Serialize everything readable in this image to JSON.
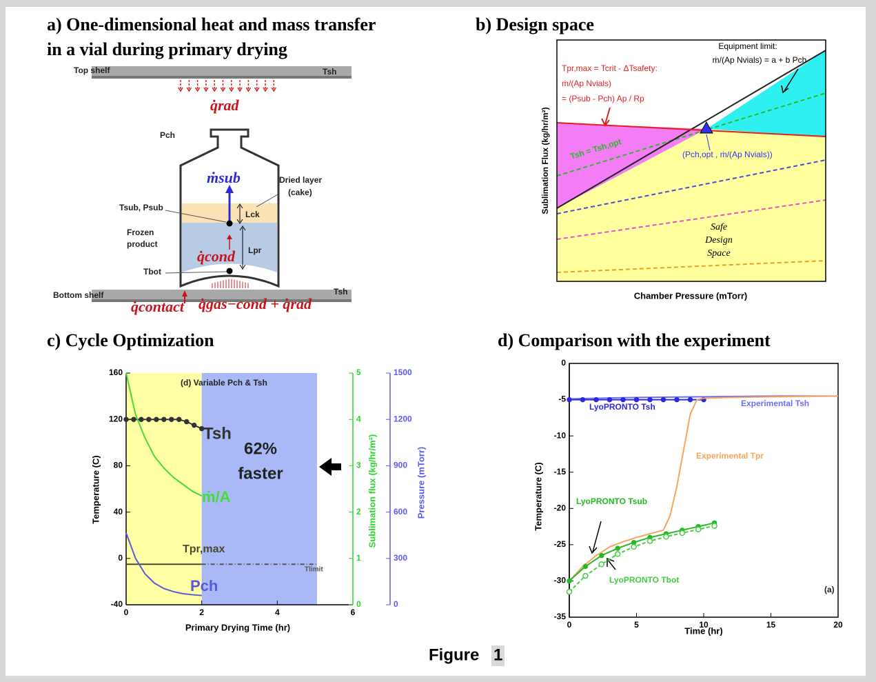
{
  "figure": {
    "label": "Figure",
    "number": "1"
  },
  "panel_a": {
    "title_lines": [
      "a) One-dimensional heat and mass transfer",
      "in a vial during primary drying"
    ],
    "top_shelf": "Top shelf",
    "top_tsh": "Tsh",
    "q_rad": "q̇rad",
    "p_ch": "Pch",
    "m_sub": "ṁsub",
    "dried_layer": [
      "Dried layer",
      "(cake)"
    ],
    "t_sub": "Tsub, Psub",
    "l_ck": "Lck",
    "frozen": [
      "Frozen",
      "product"
    ],
    "q_cond": "q̇cond",
    "l_pr": "Lpr",
    "t_bot": "Tbot",
    "bottom_shelf": "Bottom shelf",
    "bottom_tsh": "Tsh",
    "q_contact": "q̇contact",
    "q_gas": "q̇gas−cond + q̇rad"
  },
  "panel_b": {
    "title": "b) Design space",
    "equipment": [
      "Equipment limit:",
      "ṁ/(Ap Nvials) = a + b Pch"
    ],
    "product": [
      "Tpr,max = Tcrit - ΔTsafety:",
      "ṁ/(Ap Nvials)",
      "= (Psub - Pch) Ap / Rp"
    ],
    "tsh": "Tsh = Tsh,opt",
    "optimum": "(Pch,opt , ṁ/(Ap Nvials))",
    "safe": [
      "Safe",
      "Design",
      "Space"
    ],
    "ylabel": "Sublimation Flux (kg/hr/m²)",
    "xlabel": "Chamber Pressure (mTorr)"
  },
  "chart_data": [
    {
      "type": "line",
      "title": "c) Cycle Optimization",
      "xlabel": "Primary Drying Time (hr)",
      "ylabel": "Temperature (C)",
      "y2label": "Sublimation flux (kg/hr/m²)",
      "y3label": "Pressure (mTorr)",
      "xlim": [
        0,
        6
      ],
      "xticks": [
        0,
        2,
        4,
        6
      ],
      "ylim": [
        -40,
        160
      ],
      "yticks": [
        -40,
        0,
        40,
        80,
        120,
        160
      ],
      "y2lim": [
        0,
        5
      ],
      "y2ticks": [
        0,
        1,
        2,
        3,
        4,
        5
      ],
      "y2color": "#2bd62b",
      "y3lim": [
        0,
        1500
      ],
      "y3ticks": [
        0,
        300,
        600,
        900,
        1200,
        1500
      ],
      "y3color": "#5a5af0",
      "regions": [
        {
          "x": [
            0,
            2
          ],
          "color": "#ffffa6"
        },
        {
          "x": [
            2,
            5.05
          ],
          "color": "#a9b9f7"
        }
      ],
      "annotations": [
        "(d) Variable Pch & Tsh",
        "62%",
        "faster"
      ],
      "series": [
        {
          "name": "Tsh",
          "color": "#333333",
          "axis": "y",
          "marker": "dot",
          "x": [
            0,
            0.2,
            0.4,
            0.6,
            0.8,
            1,
            1.2,
            1.4,
            1.6,
            1.8,
            2
          ],
          "values": [
            120,
            120,
            120,
            120,
            120,
            120,
            120,
            120,
            118,
            115,
            112
          ]
        },
        {
          "name": "ṁ/A",
          "color": "#44dd33",
          "axis": "y2",
          "x": [
            0,
            0.25,
            0.5,
            0.75,
            1,
            1.25,
            1.5,
            1.75,
            2
          ],
          "values": [
            5,
            4.1,
            3.6,
            3.2,
            2.95,
            2.75,
            2.6,
            2.45,
            2.35
          ]
        },
        {
          "name": "Tpr,max",
          "color": "#4a4a2a",
          "axis": "y",
          "x": [
            0,
            2
          ],
          "values": [
            -5,
            -5
          ]
        },
        {
          "name": "Tlimit",
          "color": "#555555",
          "axis": "y",
          "dash": "6 3 1 3",
          "x": [
            2,
            5.05
          ],
          "values": [
            -5,
            -5
          ]
        },
        {
          "name": "Pch",
          "color": "#5a5ad8",
          "axis": "y3",
          "x": [
            0,
            0.25,
            0.5,
            0.75,
            1,
            1.25,
            1.5,
            1.75,
            2
          ],
          "values": [
            465,
            300,
            200,
            140,
            105,
            85,
            72,
            65,
            60
          ]
        }
      ]
    },
    {
      "type": "line",
      "title": "d) Comparison with the experiment",
      "xlabel": "Time (hr)",
      "ylabel": "Temperature (C)",
      "xlim": [
        0,
        20
      ],
      "xticks": [
        0,
        5,
        10,
        15,
        20
      ],
      "ylim": [
        -35,
        0
      ],
      "yticks": [
        -35,
        -30,
        -25,
        -20,
        -15,
        -10,
        -5,
        0
      ],
      "annotations": [
        "(a)"
      ],
      "series": [
        {
          "name": "Experimental Tsh",
          "color": "#6d6df7",
          "axis": "y",
          "x": [
            0,
            2,
            5,
            10,
            15,
            20
          ],
          "values": [
            -4.9,
            -4.8,
            -4.7,
            -4.6,
            -4.5,
            -4.5
          ]
        },
        {
          "name": "LyoPRONTO Tsh",
          "color": "#2b2bdd",
          "axis": "y",
          "marker": "dot",
          "x": [
            0,
            1,
            2,
            3,
            4,
            5,
            6,
            7,
            8,
            9,
            10
          ],
          "values": [
            -5,
            -5,
            -5,
            -5,
            -5,
            -5,
            -5,
            -5,
            -5,
            -5,
            -5
          ]
        },
        {
          "name": "Experimental Tpr",
          "color": "#f7a45c",
          "axis": "y",
          "x": [
            0,
            0.5,
            1,
            2,
            3,
            4,
            5,
            6,
            7,
            7.5,
            8,
            8.5,
            9,
            9.5,
            10,
            12,
            15,
            20
          ],
          "values": [
            -30,
            -29,
            -28,
            -26.5,
            -25.3,
            -24.6,
            -24,
            -23.5,
            -23,
            -21,
            -17,
            -12,
            -7,
            -5,
            -4.8,
            -4.7,
            -4.6,
            -4.5
          ]
        },
        {
          "name": "LyoPRONTO Tsub",
          "color": "#22bb22",
          "axis": "y",
          "marker": "dot",
          "x": [
            0,
            1.2,
            2.4,
            3.6,
            4.8,
            6,
            7.2,
            8.4,
            9.6,
            10.8
          ],
          "values": [
            -30,
            -28,
            -26.5,
            -25.5,
            -24.7,
            -24,
            -23.5,
            -23,
            -22.5,
            -22
          ]
        },
        {
          "name": "LyoPRONTO Tbot",
          "color": "#44cc44",
          "axis": "y",
          "marker": "open",
          "dash": "5 3",
          "x": [
            0,
            1.2,
            2.4,
            3.6,
            4.8,
            6,
            7.2,
            8.4,
            9.6,
            10.8
          ],
          "values": [
            -31.5,
            -29.3,
            -27.7,
            -26.3,
            -25.3,
            -24.5,
            -23.9,
            -23.4,
            -22.9,
            -22.4
          ]
        }
      ]
    }
  ]
}
